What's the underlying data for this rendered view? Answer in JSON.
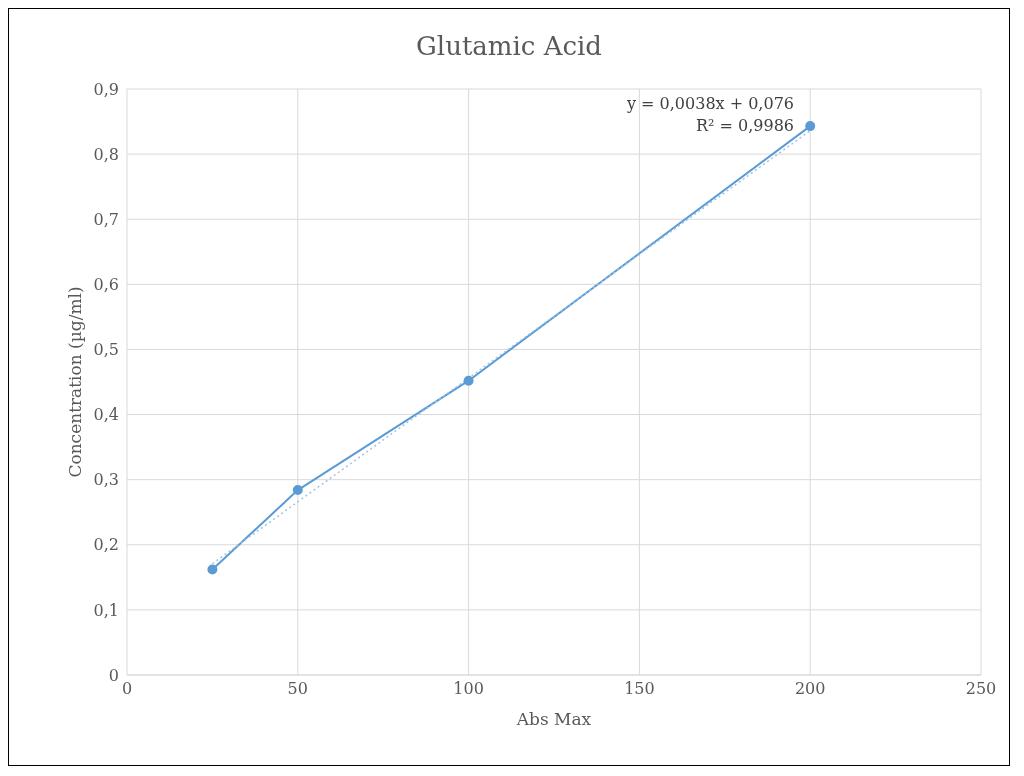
{
  "chart_data": {
    "type": "line",
    "title": "Glutamic Acid",
    "xlabel": "Abs Max",
    "ylabel": "Concentration (µg/ml)",
    "series": [
      {
        "color": "#5b9bd5",
        "x": [
          25,
          50,
          100,
          200
        ],
        "values": [
          0.162,
          0.284,
          0.452,
          0.843
        ],
        "marker": "circle",
        "line_style": "solid"
      },
      {
        "type": "line",
        "color": "#9dc3e6",
        "x": [
          25,
          200
        ],
        "values": [
          0.171,
          0.836
        ],
        "marker": "none",
        "line_style": "dotted"
      }
    ],
    "annotations": [
      "y = 0,0038x + 0,076",
      "R² = 0,9986"
    ],
    "xlim": [
      0,
      250
    ],
    "xticks": [
      0,
      50,
      100,
      150,
      200,
      250
    ],
    "ylim": [
      0,
      0.9
    ],
    "yticks": [
      0,
      {
        "value": 0.1,
        "label": "0,1"
      },
      {
        "value": 0.2,
        "label": "0,2"
      },
      {
        "value": 0.3,
        "label": "0,3"
      },
      {
        "value": 0.4,
        "label": "0,4"
      },
      {
        "value": 0.5,
        "label": "0,5"
      },
      {
        "value": 0.6,
        "label": "0,6"
      },
      {
        "value": 0.7,
        "label": "0,7"
      },
      {
        "value": 0.8,
        "label": "0,8"
      },
      {
        "value": 0.9,
        "label": "0,9"
      }
    ],
    "grid": true,
    "legend": false
  }
}
